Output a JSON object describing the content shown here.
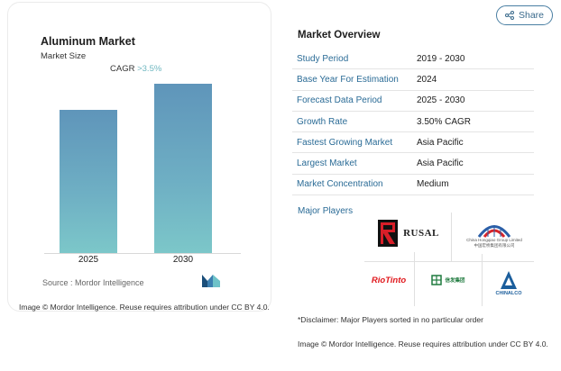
{
  "header": {
    "share_label": "Share",
    "share_icon": "share-icon"
  },
  "chart": {
    "title": "Aluminum Market",
    "subtitle": "Market Size",
    "cagr_label": "CAGR",
    "cagr_value": ">3.5%",
    "source": "Source :  Mordor Intelligence",
    "credit": "Image © Mordor Intelligence. Reuse requires attribution under CC BY 4.0."
  },
  "chart_data": {
    "type": "bar",
    "categories": [
      "2025",
      "2030"
    ],
    "values": [
      100,
      118.8
    ],
    "ylim": [
      0,
      140
    ],
    "grid": false,
    "colors": [
      "#5f95ba",
      "#7cc7c9"
    ]
  },
  "overview": {
    "title": "Market Overview",
    "rows": [
      {
        "key": "Study Period",
        "value": "2019 - 2030"
      },
      {
        "key": "Base Year For Estimation",
        "value": "2024"
      },
      {
        "key": "Forecast Data Period",
        "value": "2025 - 2030"
      },
      {
        "key": "Growth Rate",
        "value": "3.50% CAGR"
      },
      {
        "key": "Fastest Growing Market",
        "value": "Asia Pacific"
      },
      {
        "key": "Largest Market",
        "value": "Asia Pacific"
      },
      {
        "key": "Market Concentration",
        "value": "Medium"
      }
    ],
    "major_players_label": "Major Players",
    "players": {
      "rusal": "RUSAL",
      "hongqiao_en": "China Hongqiao Group Limited",
      "hongqiao_cn": "中国宏桥集团有限公司",
      "riotinto": "RioTinto",
      "xinfa_cn": "信发集团",
      "chinalco": "CHINALCO"
    },
    "disclaimer": "*Disclaimer: Major Players sorted in no particular order",
    "credit": "Image © Mordor Intelligence. Reuse requires attribution under CC BY 4.0."
  }
}
